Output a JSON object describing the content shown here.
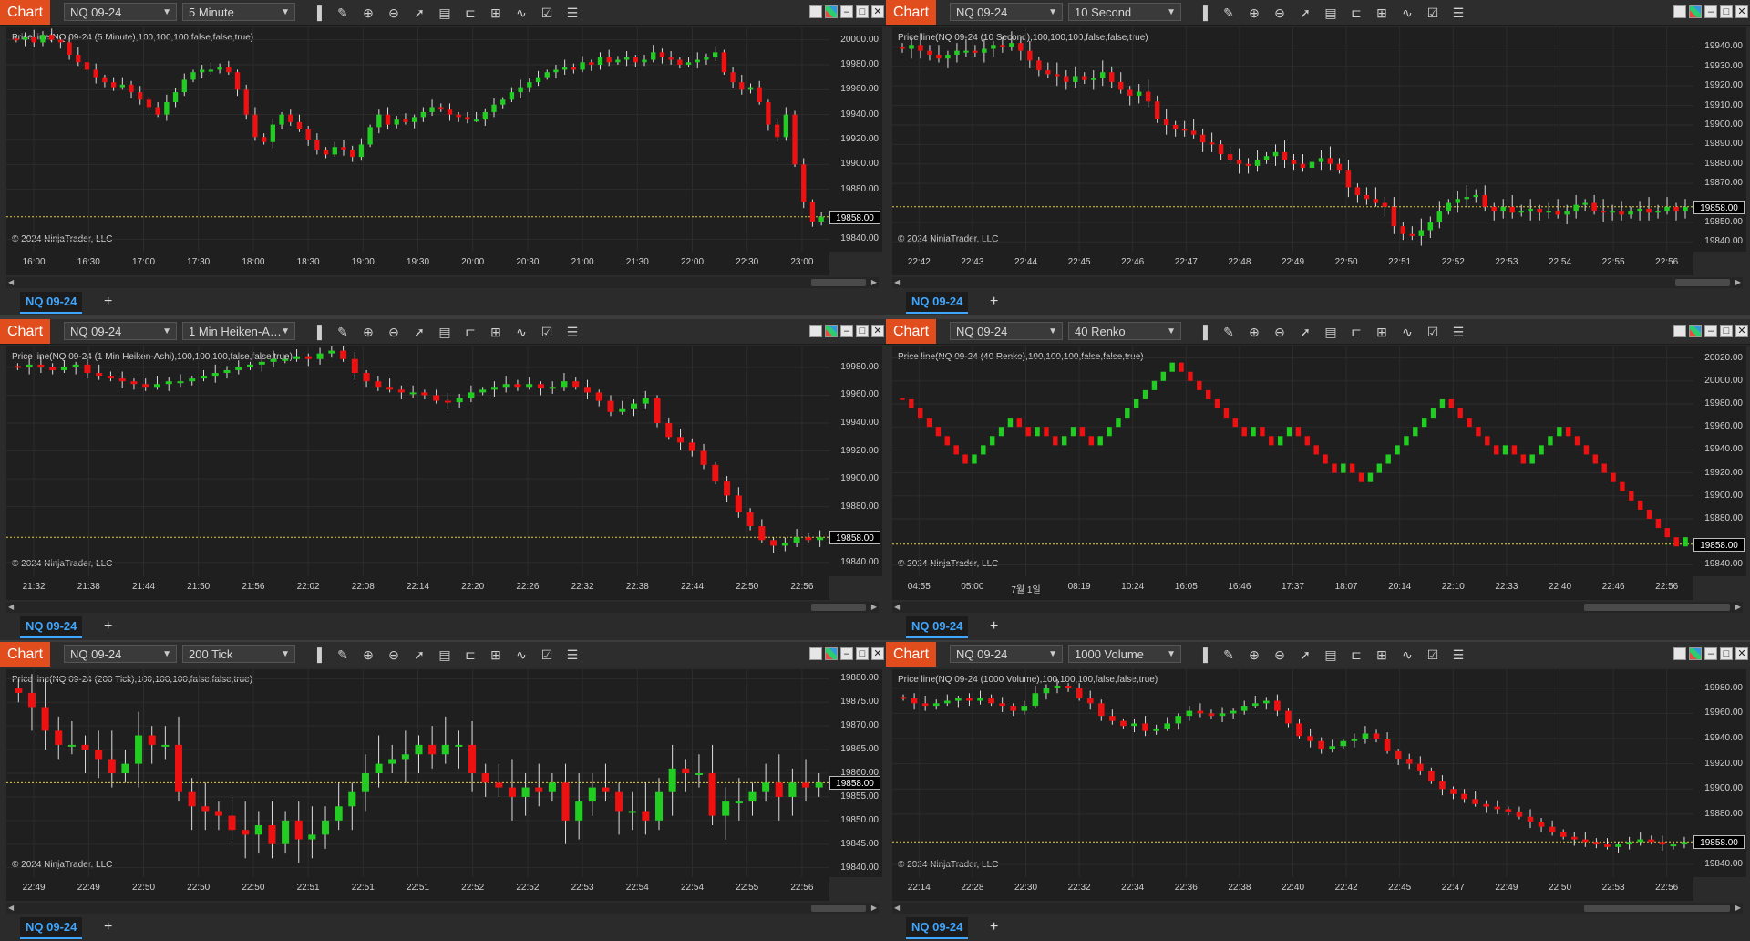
{
  "common": {
    "chart_button": "Chart",
    "copyright": "© 2024 NinjaTrader, LLC",
    "add_tab": "+",
    "current_price": "19858.00",
    "colors": {
      "up": "#22cc22",
      "down": "#ee1111",
      "price_line": "#e6d02a",
      "accent": "#e24d1d",
      "tab": "#3ea6ff"
    }
  },
  "panels": [
    {
      "instrument": "NQ 09-24",
      "interval": "5 Minute",
      "tab_label": "NQ 09-24",
      "label": "Price line(NQ 09-24 (5 Minute),100,100,100,false,false,true)",
      "y_ticks": [
        "20000.00",
        "19980.00",
        "19960.00",
        "19940.00",
        "19920.00",
        "19900.00",
        "19880.00",
        "19840.00"
      ],
      "x_ticks": [
        "16:00",
        "16:30",
        "17:00",
        "17:30",
        "18:00",
        "18:30",
        "19:00",
        "19:30",
        "20:00",
        "20:30",
        "21:00",
        "21:30",
        "22:00",
        "22:30",
        "23:00"
      ],
      "chart_data": {
        "type": "candlestick",
        "ylim": [
          19830,
          20010
        ],
        "current_price": 19858,
        "closes": [
          20000,
          20002,
          19998,
          20004,
          20000,
          19998,
          19988,
          19982,
          19976,
          19970,
          19966,
          19962,
          19964,
          19958,
          19952,
          19946,
          19940,
          19950,
          19958,
          19968,
          19974,
          19976,
          19976,
          19978,
          19974,
          19960,
          19940,
          19922,
          19918,
          19932,
          19940,
          19934,
          19928,
          19920,
          19912,
          19908,
          19914,
          19912,
          19906,
          19916,
          19930,
          19940,
          19932,
          19936,
          19934,
          19938,
          19942,
          19946,
          19944,
          19940,
          19938,
          19936,
          19936,
          19942,
          19948,
          19952,
          19958,
          19962,
          19966,
          19970,
          19974,
          19976,
          19978,
          19976,
          19982,
          19980,
          19986,
          19982,
          19984,
          19986,
          19982,
          19984,
          19990,
          19986,
          19984,
          19980,
          19982,
          19984,
          19986,
          19990,
          19974,
          19966,
          19960,
          19962,
          19950,
          19932,
          19922,
          19940,
          19900,
          19870,
          19854,
          19858
        ]
      }
    },
    {
      "instrument": "NQ 09-24",
      "interval": "10 Second",
      "tab_label": "NQ 09-24",
      "label": "Price line(NQ 09-24 (10 Second),100,100,100,false,false,true)",
      "y_ticks": [
        "19940.00",
        "19930.00",
        "19920.00",
        "19910.00",
        "19900.00",
        "19890.00",
        "19880.00",
        "19870.00",
        "19850.00",
        "19840.00"
      ],
      "x_ticks": [
        "22:42",
        "22:43",
        "22:44",
        "22:45",
        "22:46",
        "22:47",
        "22:48",
        "22:49",
        "22:50",
        "22:51",
        "22:52",
        "22:53",
        "22:54",
        "22:55",
        "22:56"
      ],
      "chart_data": {
        "type": "candlestick",
        "ylim": [
          19835,
          19950
        ],
        "current_price": 19858,
        "closes": [
          19939,
          19941,
          19938,
          19936,
          19934,
          19936,
          19938,
          19938,
          19937,
          19939,
          19941,
          19940,
          19942,
          19938,
          19933,
          19928,
          19926,
          19925,
          19922,
          19925,
          19923,
          19924,
          19927,
          19922,
          19918,
          19915,
          19917,
          19912,
          19903,
          19900,
          19898,
          19897,
          19895,
          19891,
          19890,
          19885,
          19882,
          19880,
          19879,
          19882,
          19884,
          19886,
          19882,
          19880,
          19878,
          19881,
          19883,
          19880,
          19877,
          19868,
          19864,
          19862,
          19860,
          19858,
          19848,
          19844,
          19843,
          19846,
          19850,
          19856,
          19860,
          19862,
          19863,
          19864,
          19858,
          19856,
          19858,
          19855,
          19856,
          19857,
          19855,
          19856,
          19854,
          19856,
          19859,
          19860,
          19856,
          19855,
          19856,
          19854,
          19856,
          19857,
          19855,
          19856,
          19858,
          19856,
          19858
        ]
      }
    },
    {
      "instrument": "NQ 09-24",
      "interval": "1 Min Heiken-A…",
      "tab_label": "NQ 09-24",
      "label": "Price line(NQ 09-24 (1 Min Heiken-Ashi),100,100,100,false,false,true)",
      "y_ticks": [
        "19980.00",
        "19960.00",
        "19940.00",
        "19920.00",
        "19900.00",
        "19880.00",
        "19840.00"
      ],
      "x_ticks": [
        "21:32",
        "21:38",
        "21:44",
        "21:50",
        "21:56",
        "22:02",
        "22:08",
        "22:14",
        "22:20",
        "22:26",
        "22:32",
        "22:38",
        "22:44",
        "22:50",
        "22:56"
      ],
      "chart_data": {
        "type": "heiken-ashi",
        "ylim": [
          19830,
          19995
        ],
        "current_price": 19858,
        "closes": [
          19980,
          19982,
          19980,
          19978,
          19980,
          19982,
          19976,
          19974,
          19972,
          19970,
          19968,
          19966,
          19968,
          19970,
          19970,
          19972,
          19974,
          19976,
          19978,
          19980,
          19982,
          19984,
          19986,
          19986,
          19988,
          19986,
          19990,
          19992,
          19986,
          19976,
          19970,
          19966,
          19964,
          19962,
          19962,
          19960,
          19956,
          19955,
          19958,
          19962,
          19964,
          19966,
          19968,
          19966,
          19968,
          19965,
          19966,
          19970,
          19966,
          19962,
          19956,
          19948,
          19950,
          19954,
          19958,
          19940,
          19930,
          19926,
          19920,
          19910,
          19898,
          19888,
          19876,
          19866,
          19856,
          19852,
          19854,
          19858,
          19856,
          19858
        ]
      }
    },
    {
      "instrument": "NQ 09-24",
      "interval": "40 Renko",
      "tab_label": "NQ 09-24",
      "label": "Price line(NQ 09-24 (40 Renko),100,100,100,false,false,true)",
      "y_ticks": [
        "20020.00",
        "20000.00",
        "19980.00",
        "19960.00",
        "19940.00",
        "19920.00",
        "19900.00",
        "19880.00",
        "19840.00"
      ],
      "x_ticks": [
        "04:55",
        "05:00",
        "7월 1일",
        "08:19",
        "10:24",
        "16:05",
        "16:46",
        "17:37",
        "18:07",
        "20:14",
        "22:10",
        "22:33",
        "22:40",
        "22:46",
        "22:56"
      ],
      "chart_data": {
        "type": "renko",
        "ylim": [
          19830,
          20030
        ],
        "current_price": 19858,
        "closes": [
          19984,
          19976,
          19968,
          19960,
          19952,
          19944,
          19936,
          19928,
          19936,
          19944,
          19952,
          19960,
          19968,
          19960,
          19952,
          19960,
          19952,
          19944,
          19952,
          19960,
          19952,
          19944,
          19952,
          19960,
          19968,
          19976,
          19984,
          19992,
          20000,
          20008,
          20016,
          20008,
          20000,
          19992,
          19984,
          19976,
          19968,
          19960,
          19952,
          19960,
          19952,
          19944,
          19952,
          19960,
          19952,
          19944,
          19936,
          19928,
          19920,
          19928,
          19920,
          19912,
          19920,
          19928,
          19936,
          19944,
          19952,
          19960,
          19968,
          19976,
          19984,
          19976,
          19968,
          19960,
          19952,
          19944,
          19936,
          19944,
          19936,
          19928,
          19936,
          19944,
          19952,
          19960,
          19952,
          19944,
          19936,
          19928,
          19920,
          19912,
          19904,
          19896,
          19888,
          19880,
          19872,
          19864,
          19856,
          19864
        ]
      }
    },
    {
      "instrument": "NQ 09-24",
      "interval": "200 Tick",
      "tab_label": "NQ 09-24",
      "label": "Price line(NQ 09-24 (200 Tick),100,100,100,false,false,true)",
      "y_ticks": [
        "19880.00",
        "19875.00",
        "19870.00",
        "19865.00",
        "19860.00",
        "19855.00",
        "19850.00",
        "19845.00",
        "19840.00"
      ],
      "x_ticks": [
        "22:49",
        "22:49",
        "22:50",
        "22:50",
        "22:50",
        "22:51",
        "22:51",
        "22:51",
        "22:52",
        "22:52",
        "22:53",
        "22:54",
        "22:54",
        "22:55",
        "22:56"
      ],
      "chart_data": {
        "type": "candlestick",
        "ylim": [
          19838,
          19882
        ],
        "current_price": 19858,
        "closes": [
          19877,
          19874,
          19869,
          19866,
          19866,
          19865,
          19863,
          19860,
          19862,
          19868,
          19866,
          19866,
          19856,
          19853,
          19852,
          19851,
          19848,
          19847,
          19849,
          19845,
          19850,
          19846,
          19847,
          19850,
          19853,
          19856,
          19860,
          19862,
          19863,
          19864,
          19866,
          19864,
          19866,
          19866,
          19860,
          19858,
          19857,
          19855,
          19857,
          19856,
          19858,
          19850,
          19854,
          19857,
          19856,
          19852,
          19852,
          19850,
          19856,
          19861,
          19860,
          19860,
          19851,
          19854,
          19854,
          19856,
          19858,
          19855,
          19858,
          19857,
          19858
        ]
      }
    },
    {
      "instrument": "NQ 09-24",
      "interval": "1000 Volume",
      "tab_label": "NQ 09-24",
      "label": "Price line(NQ 09-24 (1000 Volume),100,100,100,false,false,true)",
      "y_ticks": [
        "19980.00",
        "19960.00",
        "19940.00",
        "19920.00",
        "19900.00",
        "19880.00",
        "19840.00"
      ],
      "x_ticks": [
        "22:14",
        "22:28",
        "22:30",
        "22:32",
        "22:34",
        "22:36",
        "22:38",
        "22:40",
        "22:42",
        "22:45",
        "22:47",
        "22:49",
        "22:50",
        "22:53",
        "22:56"
      ],
      "chart_data": {
        "type": "candlestick",
        "ylim": [
          19830,
          19995
        ],
        "current_price": 19858,
        "closes": [
          19972,
          19968,
          19966,
          19968,
          19970,
          19972,
          19970,
          19972,
          19968,
          19966,
          19962,
          19966,
          19976,
          19980,
          19982,
          19980,
          19972,
          19968,
          19958,
          19954,
          19950,
          19952,
          19946,
          19948,
          19952,
          19958,
          19962,
          19960,
          19958,
          19960,
          19962,
          19966,
          19968,
          19970,
          19962,
          19952,
          19942,
          19938,
          19932,
          19934,
          19938,
          19940,
          19944,
          19940,
          19930,
          19924,
          19920,
          19914,
          19906,
          19900,
          19896,
          19892,
          19888,
          19886,
          19884,
          19882,
          19878,
          19874,
          19870,
          19866,
          19862,
          19860,
          19858,
          19856,
          19854,
          19856,
          19858,
          19860,
          19858,
          19856,
          19856,
          19858
        ]
      }
    }
  ]
}
